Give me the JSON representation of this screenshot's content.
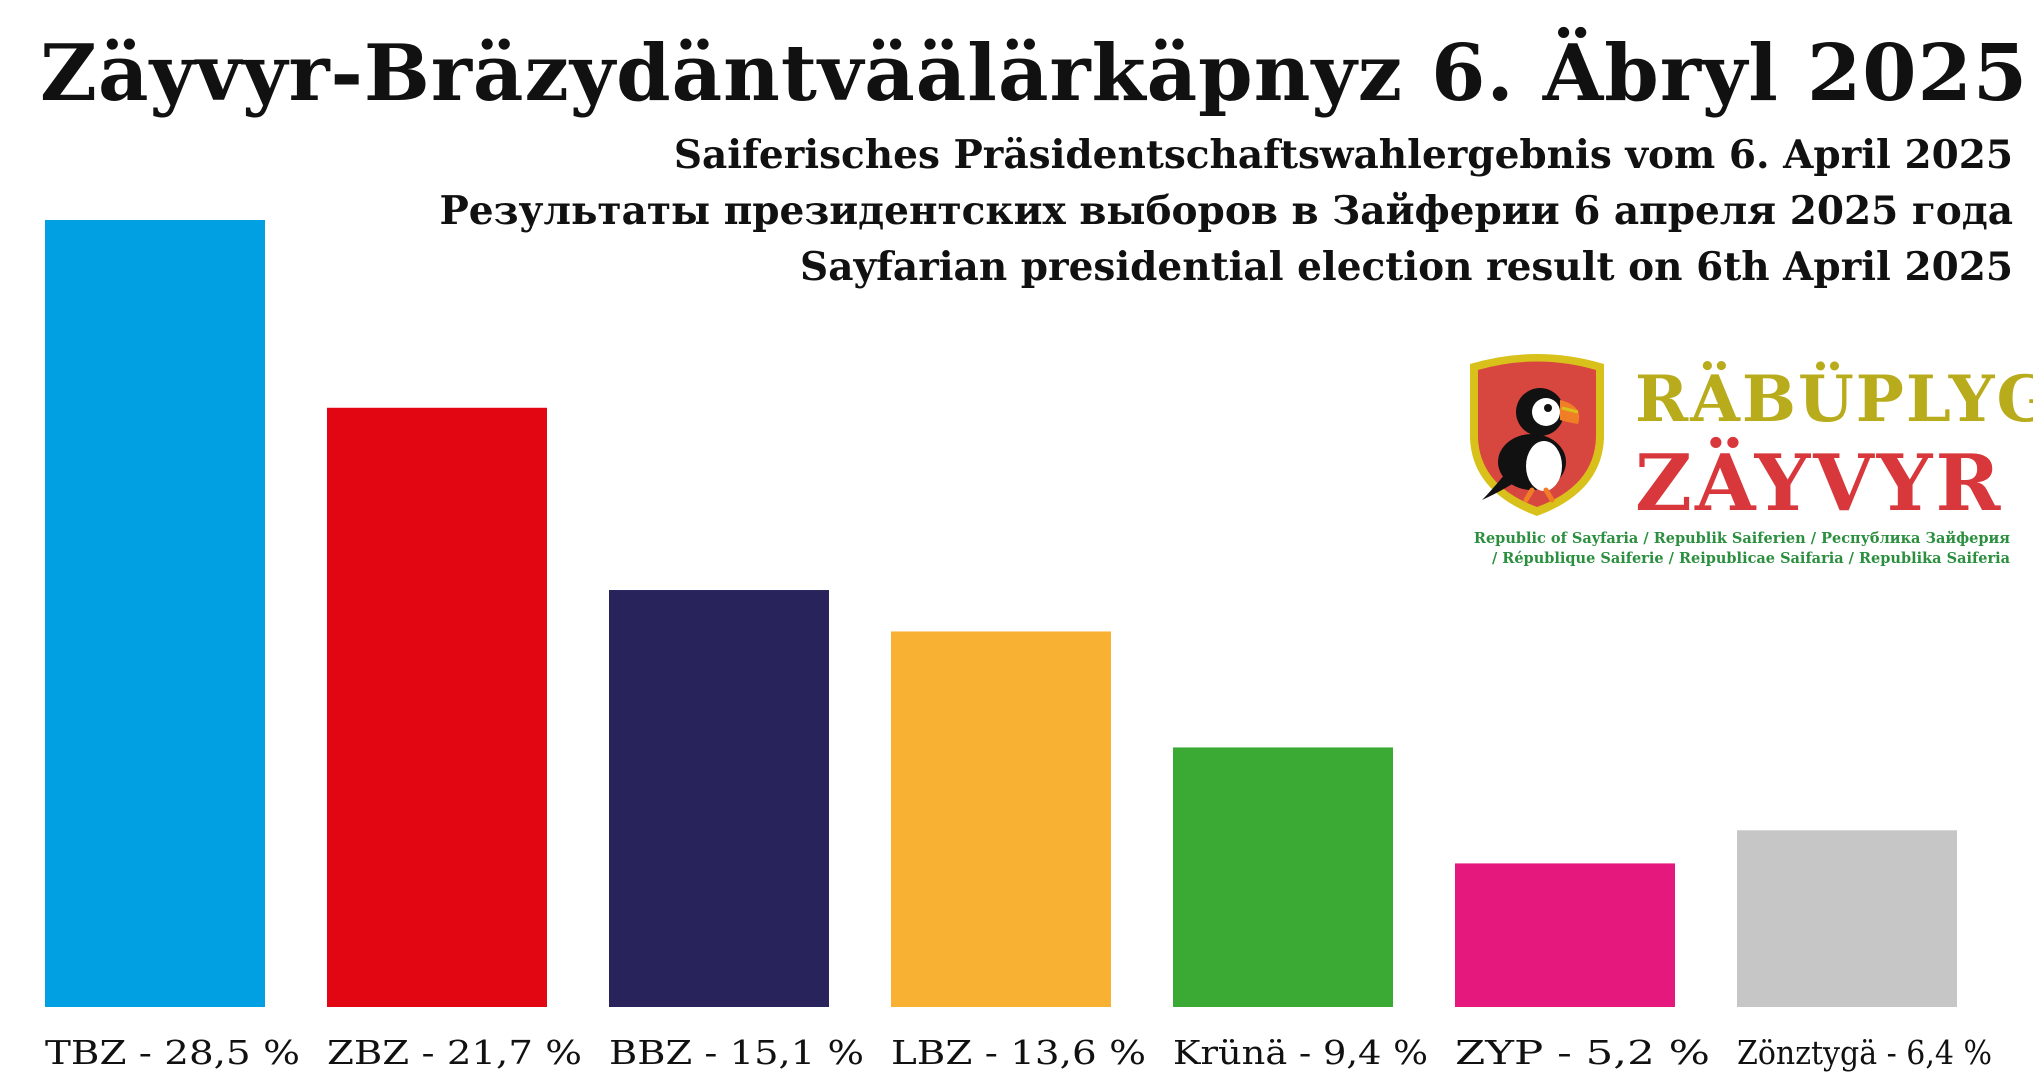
{
  "header": {
    "title": "Zäyvyr-Bräzydäntväälärkäpnyz 6. Äbryl 2025",
    "subtitle_de": "Saiferisches Präsidentschaftswahlergebnis vom 6. April 2025",
    "subtitle_ru": "Результаты президентских выборов в Зайферии 6 апреля 2025 года",
    "subtitle_en": "Sayfarian presidential election result on 6th April 2025"
  },
  "logo": {
    "word1": "RÄBÜPLYG",
    "word2": "ZÄYVYR",
    "line1": "Republic of Sayfaria / Republik Saiferien / Республика Зайферия",
    "line2": "/ République Saiferie / Reipublicae Saifaria / Republika Saiferia",
    "emblem_icon": "puffin-shield-icon",
    "colors": {
      "shield": "#d8473f",
      "rim": "#d9c11c",
      "word1": "#b9ac1c",
      "word2": "#d8373b",
      "small_text": "#2b8f3f"
    }
  },
  "chart_data": {
    "type": "bar",
    "categories": [
      "TBZ",
      "ZBZ",
      "BBZ",
      "LBZ",
      "Krünä",
      "ZYP",
      "Zönztygä"
    ],
    "values": [
      28.5,
      21.7,
      15.1,
      13.6,
      9.4,
      5.2,
      6.4
    ],
    "labels": [
      "TBZ - 28,5 %",
      "ZBZ - 21,7 %",
      "BBZ - 15,1 %",
      "LBZ - 13,6 %",
      "Krünä - 9,4 %",
      "ZYP - 5,2 %",
      "Zönztygä - 6,4 %"
    ],
    "colors": [
      "#00a0e3",
      "#e20613",
      "#29235c",
      "#f8b133",
      "#3aaa35",
      "#e5197d",
      "#c6c6c6"
    ],
    "ylim": [
      0,
      28.5
    ],
    "grid": false,
    "legend": "none"
  }
}
